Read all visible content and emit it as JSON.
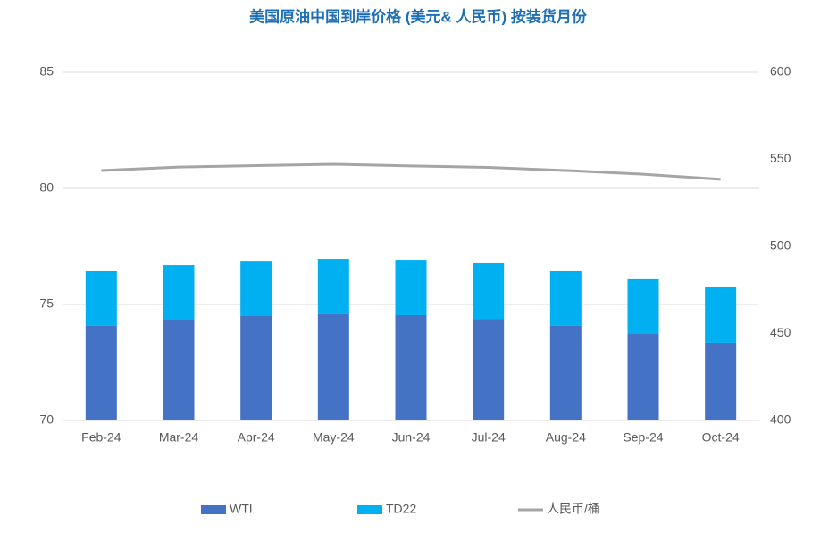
{
  "chart_data": {
    "type": "bar",
    "title": "美国原油中国到岸价格 (美元& 人民币) 按装货月份",
    "categories": [
      "Feb-24",
      "Mar-24",
      "Apr-24",
      "May-24",
      "Jun-24",
      "Jul-24",
      "Aug-24",
      "Sep-24",
      "Oct-24"
    ],
    "stacked": true,
    "series": [
      {
        "name": "WTI",
        "type": "bar",
        "color": "#4472c4",
        "values": [
          74.08,
          74.31,
          74.5,
          74.58,
          74.54,
          74.38,
          74.08,
          73.73,
          73.35
        ]
      },
      {
        "name": "TD22",
        "type": "bar",
        "color": "#00b0f0",
        "values": [
          2.38,
          2.38,
          2.38,
          2.38,
          2.38,
          2.39,
          2.38,
          2.39,
          2.38
        ]
      },
      {
        "name": "人民币/桶",
        "type": "line",
        "axis": "y2",
        "color": "#a5a5a5",
        "values": [
          543.6,
          545.6,
          546.4,
          547.2,
          546.2,
          545.4,
          543.6,
          541.5,
          538.5
        ]
      }
    ],
    "ylim": [
      70,
      85
    ],
    "yticks": [
      70,
      75,
      80,
      85
    ],
    "y2lim": [
      400,
      600
    ],
    "y2ticks": [
      400,
      450,
      500,
      550,
      600
    ],
    "grid": true,
    "legend": "bottom"
  }
}
